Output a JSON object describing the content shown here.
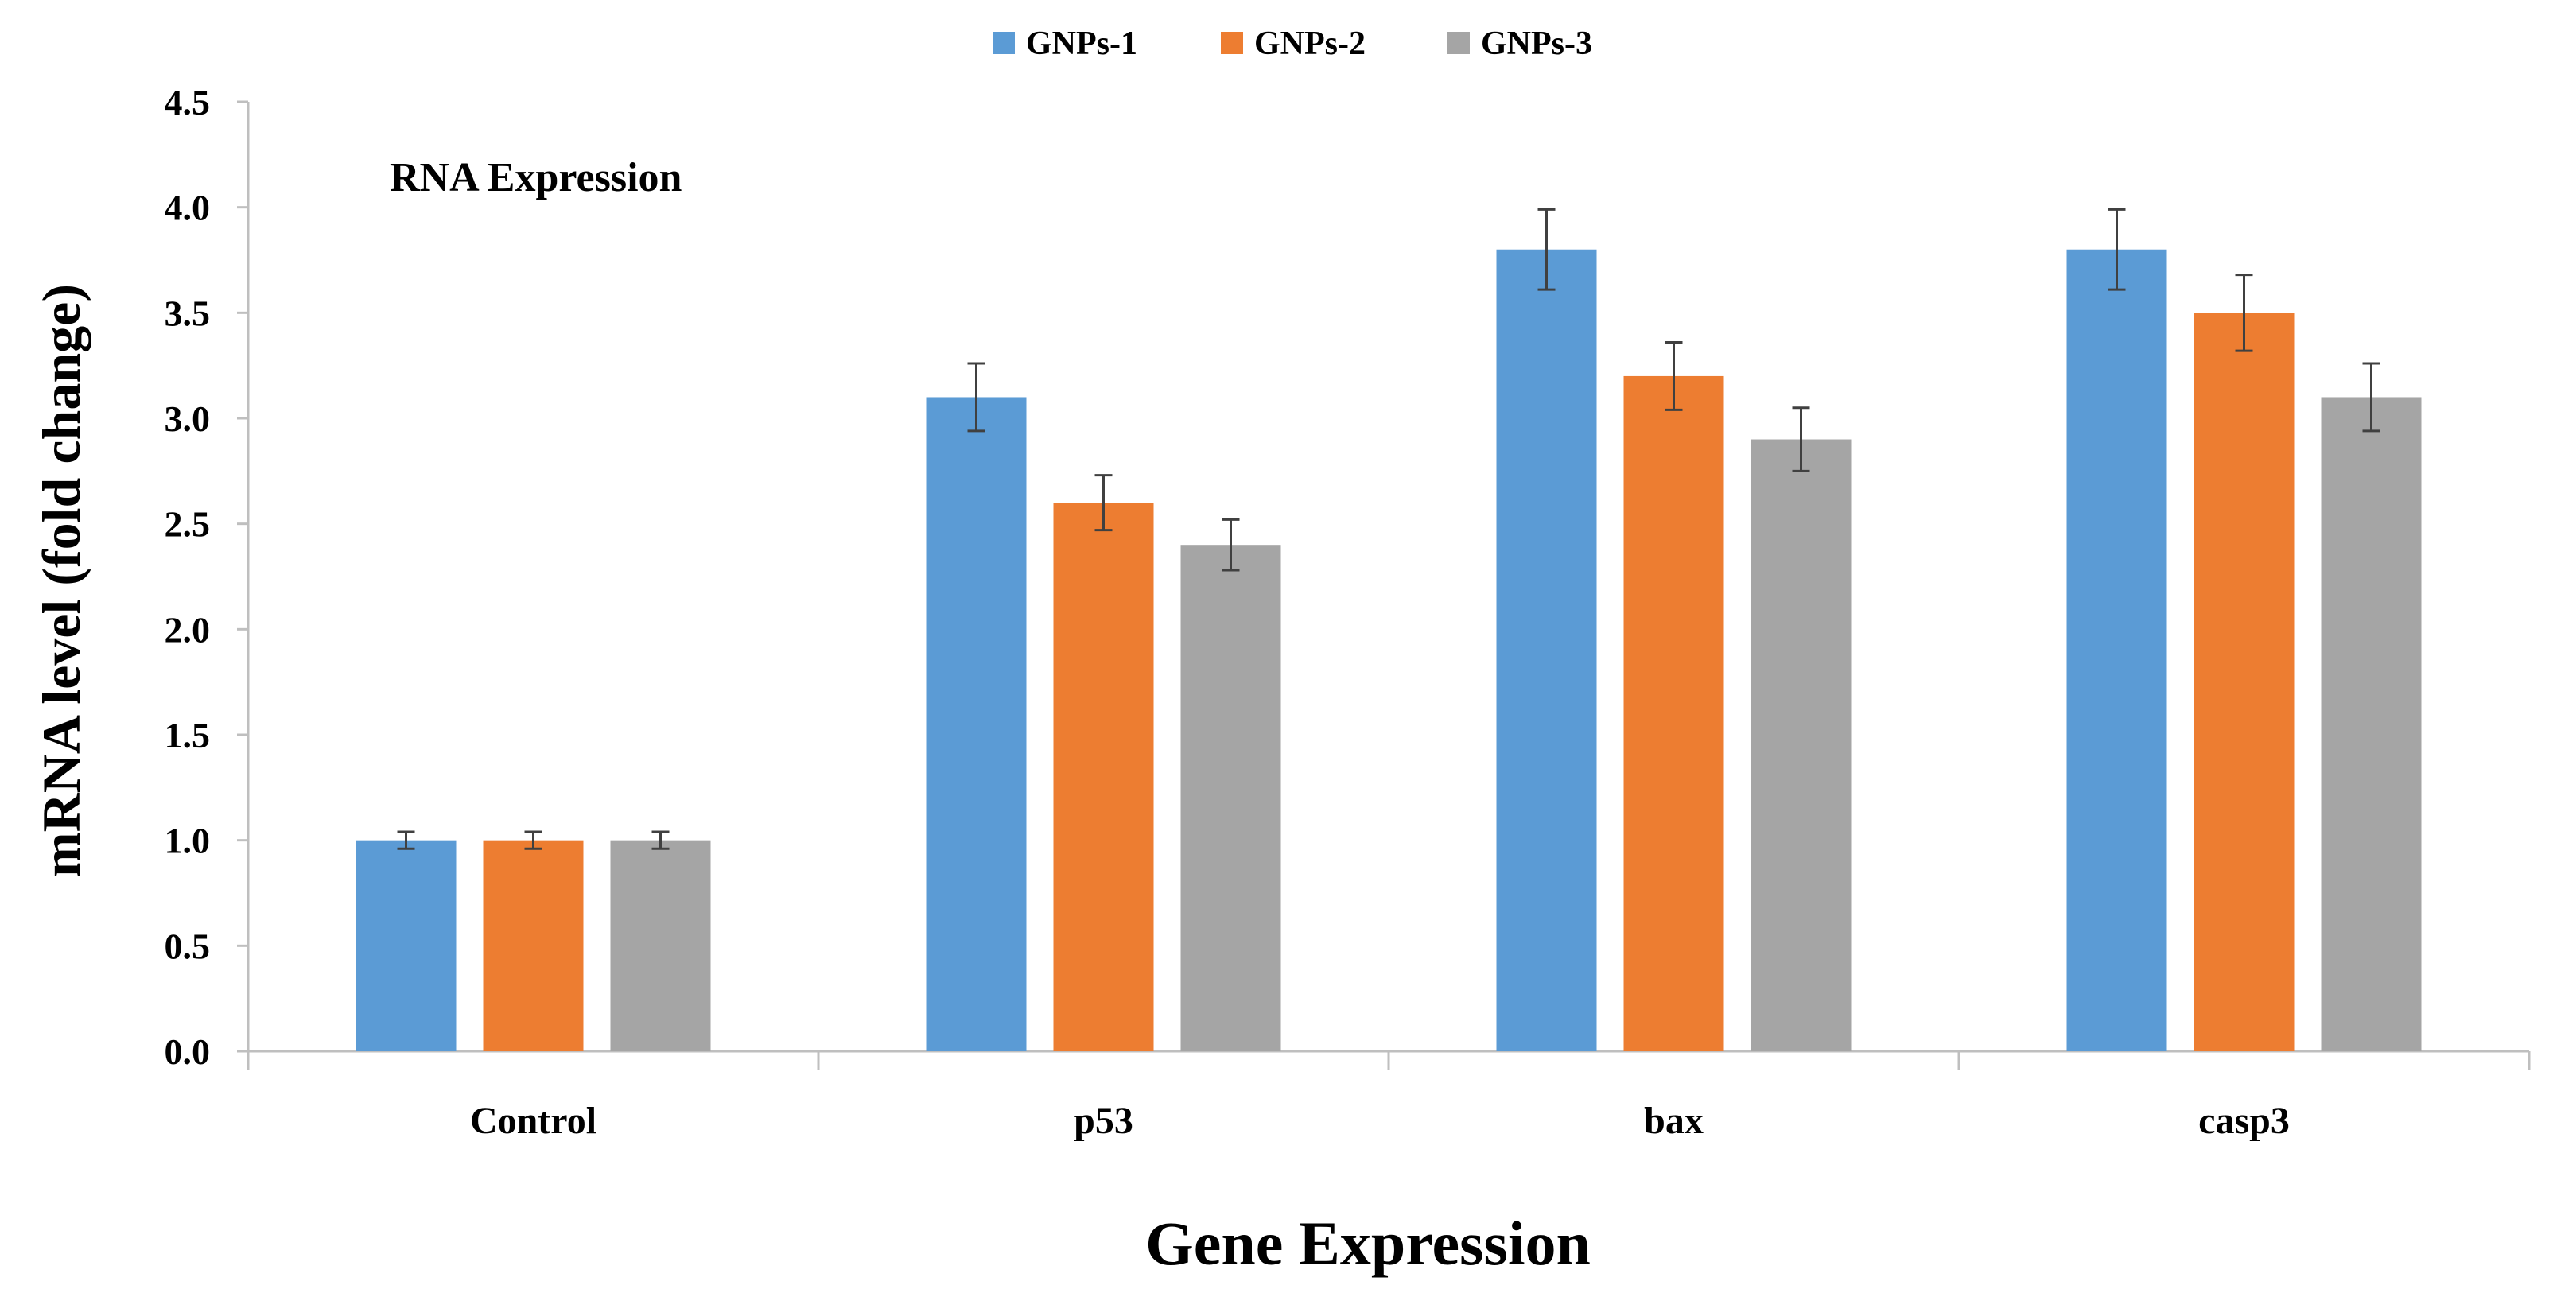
{
  "chart_data": {
    "type": "bar",
    "annotation": "RNA Expression",
    "xlabel": "Gene Expression",
    "ylabel": "mRNA level (fold change)",
    "ylim": [
      0,
      4.5
    ],
    "ytick_step": 0.5,
    "yticks": [
      "0.0",
      "0.5",
      "1.0",
      "1.5",
      "2.0",
      "2.5",
      "3.0",
      "3.5",
      "4.0",
      "4.5"
    ],
    "categories": [
      "Control",
      "p53",
      "bax",
      "casp3"
    ],
    "legend_position": "top-center",
    "grid": false,
    "series": [
      {
        "name": "GNPs-1",
        "color": "#5B9BD5",
        "values": [
          1.0,
          3.1,
          3.8,
          3.8
        ],
        "errors": [
          0.04,
          0.16,
          0.19,
          0.19
        ]
      },
      {
        "name": "GNPs-2",
        "color": "#ED7D31",
        "values": [
          1.0,
          2.6,
          3.2,
          3.5
        ],
        "errors": [
          0.04,
          0.13,
          0.16,
          0.18
        ]
      },
      {
        "name": "GNPs-3",
        "color": "#A5A5A5",
        "values": [
          1.0,
          2.4,
          2.9,
          3.1
        ],
        "errors": [
          0.04,
          0.12,
          0.15,
          0.16
        ]
      }
    ]
  }
}
